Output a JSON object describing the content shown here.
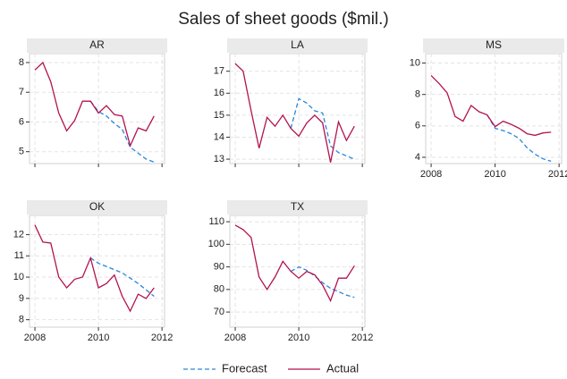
{
  "title": "Sales of sheet goods ($mil.)",
  "legend": [
    "Forecast",
    "Actual"
  ],
  "chart_data": [
    {
      "type": "line",
      "title": "AR",
      "x": [
        2008,
        2008.25,
        2008.5,
        2008.75,
        2009,
        2009.25,
        2009.5,
        2009.75,
        2010,
        2010.25,
        2010.5,
        2010.75,
        2011,
        2011.25,
        2011.5,
        2011.75
      ],
      "series": [
        {
          "color": "#2a86d8",
          "linestyle": "dashed",
          "values": [
            null,
            null,
            null,
            null,
            null,
            null,
            null,
            6.7,
            6.35,
            6.2,
            5.95,
            5.75,
            5.15,
            4.95,
            4.75,
            4.65
          ]
        },
        {
          "color": "#b3124f",
          "linestyle": "solid",
          "values": [
            7.75,
            8.0,
            7.35,
            6.3,
            5.7,
            6.05,
            6.7,
            6.7,
            6.3,
            6.55,
            6.25,
            6.2,
            5.2,
            5.8,
            5.7,
            6.2
          ]
        }
      ],
      "xlim": [
        2007.83,
        2012.08
      ],
      "ylim": [
        4.6,
        8.3
      ],
      "xticks": [
        2008,
        2010,
        2012
      ],
      "yticks": [
        5,
        6,
        7,
        8
      ],
      "grid": true,
      "show_xtick_labels": false
    },
    {
      "type": "line",
      "title": "LA",
      "x": [
        2008,
        2008.25,
        2008.5,
        2008.75,
        2009,
        2009.25,
        2009.5,
        2009.75,
        2010,
        2010.25,
        2010.5,
        2010.75,
        2011,
        2011.25,
        2011.5,
        2011.75
      ],
      "series": [
        {
          "color": "#2a86d8",
          "linestyle": "dashed",
          "values": [
            null,
            null,
            null,
            null,
            null,
            null,
            null,
            14.4,
            15.75,
            15.55,
            15.2,
            15.1,
            13.6,
            13.3,
            13.15,
            13.0
          ]
        },
        {
          "color": "#b3124f",
          "linestyle": "solid",
          "values": [
            17.35,
            17.0,
            15.2,
            13.5,
            14.9,
            14.5,
            15.0,
            14.4,
            14.05,
            14.65,
            15.0,
            14.65,
            12.85,
            14.7,
            13.85,
            14.5
          ]
        }
      ],
      "xlim": [
        2007.83,
        2012.08
      ],
      "ylim": [
        12.8,
        17.8
      ],
      "xticks": [
        2008,
        2010,
        2012
      ],
      "yticks": [
        13,
        14,
        15,
        16,
        17
      ],
      "grid": true,
      "show_xtick_labels": false
    },
    {
      "type": "line",
      "title": "MS",
      "x": [
        2008,
        2008.25,
        2008.5,
        2008.75,
        2009,
        2009.25,
        2009.5,
        2009.75,
        2010,
        2010.25,
        2010.5,
        2010.75,
        2011,
        2011.25,
        2011.5,
        2011.75
      ],
      "series": [
        {
          "color": "#2a86d8",
          "linestyle": "dashed",
          "values": [
            null,
            null,
            null,
            null,
            null,
            null,
            null,
            6.7,
            5.85,
            5.7,
            5.5,
            5.2,
            4.6,
            4.2,
            3.9,
            3.75
          ]
        },
        {
          "color": "#b3124f",
          "linestyle": "solid",
          "values": [
            9.2,
            8.7,
            8.1,
            6.6,
            6.3,
            7.3,
            6.9,
            6.7,
            5.95,
            6.3,
            6.1,
            5.85,
            5.5,
            5.4,
            5.55,
            5.6
          ]
        }
      ],
      "xlim": [
        2007.83,
        2012.08
      ],
      "ylim": [
        3.6,
        10.6
      ],
      "xticks": [
        2008,
        2010,
        2012
      ],
      "yticks": [
        4,
        6,
        8,
        10
      ],
      "grid": true
    },
    {
      "type": "line",
      "title": "OK",
      "x": [
        2008,
        2008.25,
        2008.5,
        2008.75,
        2009,
        2009.25,
        2009.5,
        2009.75,
        2010,
        2010.25,
        2010.5,
        2010.75,
        2011,
        2011.25,
        2011.5,
        2011.75
      ],
      "series": [
        {
          "color": "#2a86d8",
          "linestyle": "dashed",
          "values": [
            null,
            null,
            null,
            null,
            null,
            null,
            null,
            10.9,
            10.65,
            10.5,
            10.35,
            10.2,
            9.95,
            9.7,
            9.4,
            9.1
          ]
        },
        {
          "color": "#b3124f",
          "linestyle": "solid",
          "values": [
            12.45,
            11.65,
            11.6,
            10.0,
            9.5,
            9.9,
            10.0,
            10.9,
            9.5,
            9.7,
            10.1,
            9.1,
            8.4,
            9.2,
            9.0,
            9.5
          ]
        }
      ],
      "xlim": [
        2007.83,
        2012.08
      ],
      "ylim": [
        7.65,
        12.9
      ],
      "xticks": [
        2008,
        2010,
        2012
      ],
      "yticks": [
        8,
        9,
        10,
        11,
        12
      ],
      "grid": true
    },
    {
      "type": "line",
      "title": "TX",
      "x": [
        2008,
        2008.25,
        2008.5,
        2008.75,
        2009,
        2009.25,
        2009.5,
        2009.75,
        2010,
        2010.25,
        2010.5,
        2010.75,
        2011,
        2011.25,
        2011.5,
        2011.75
      ],
      "series": [
        {
          "color": "#2a86d8",
          "linestyle": "dashed",
          "values": [
            null,
            null,
            null,
            null,
            null,
            null,
            null,
            88,
            90,
            88.5,
            86,
            83,
            80.5,
            79,
            77.5,
            76.5
          ]
        },
        {
          "color": "#b3124f",
          "linestyle": "solid",
          "values": [
            108.5,
            106.5,
            103,
            85.5,
            80,
            85.5,
            92.5,
            88,
            85,
            88,
            86.5,
            82,
            75,
            85,
            85,
            90.5
          ]
        }
      ],
      "xlim": [
        2007.83,
        2012.08
      ],
      "ylim": [
        63.3,
        112.8
      ],
      "xticks": [
        2008,
        2010,
        2012
      ],
      "yticks": [
        70,
        80,
        90,
        100,
        110
      ],
      "grid": true
    }
  ]
}
